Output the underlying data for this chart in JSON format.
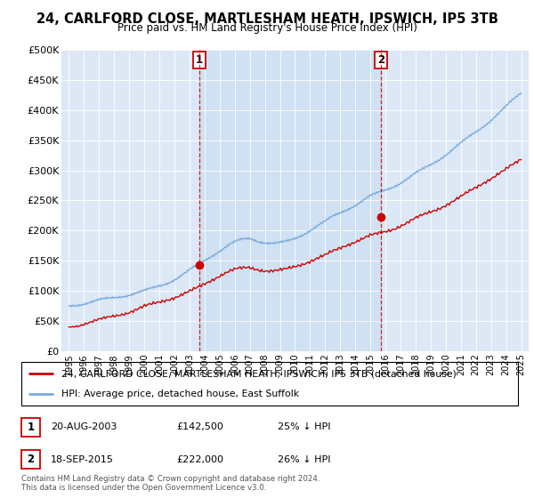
{
  "title": "24, CARLFORD CLOSE, MARTLESHAM HEATH, IPSWICH, IP5 3TB",
  "subtitle": "Price paid vs. HM Land Registry's House Price Index (HPI)",
  "legend_label_red": "24, CARLFORD CLOSE, MARTLESHAM HEATH, IPSWICH, IP5 3TB (detached house)",
  "legend_label_blue": "HPI: Average price, detached house, East Suffolk",
  "sale1_date": "20-AUG-2003",
  "sale1_price": "£142,500",
  "sale1_note": "25% ↓ HPI",
  "sale2_date": "18-SEP-2015",
  "sale2_price": "£222,000",
  "sale2_note": "26% ↓ HPI",
  "footer": "Contains HM Land Registry data © Crown copyright and database right 2024.\nThis data is licensed under the Open Government Licence v3.0.",
  "hpi_color": "#7aaadd",
  "price_color": "#cc0000",
  "shade_color": "#ddeeff",
  "sale1_x": 2003.65,
  "sale2_x": 2015.72,
  "sale1_y": 142500,
  "sale2_y": 222000,
  "ylim_min": 0,
  "ylim_max": 500000,
  "yticks": [
    0,
    50000,
    100000,
    150000,
    200000,
    250000,
    300000,
    350000,
    400000,
    450000,
    500000
  ],
  "ytick_labels": [
    "£0",
    "£50K",
    "£100K",
    "£150K",
    "£200K",
    "£250K",
    "£300K",
    "£350K",
    "£400K",
    "£450K",
    "£500K"
  ],
  "background_color": "#dce8f5",
  "xmin": 1994.5,
  "xmax": 2025.5
}
